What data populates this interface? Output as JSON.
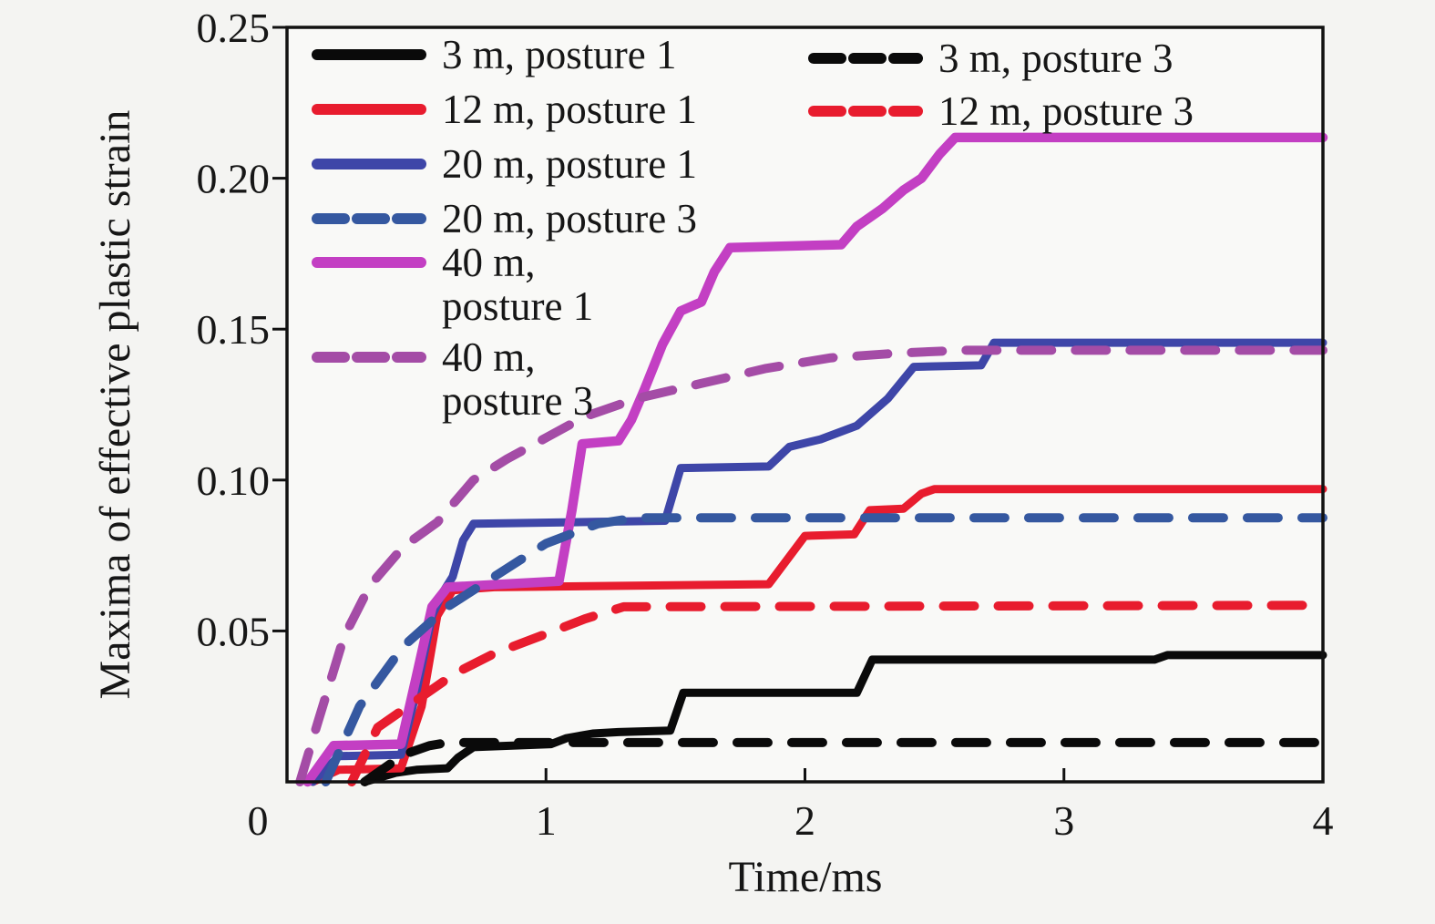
{
  "figure": {
    "background": "#f4f4f2",
    "plot_background": "#f9f9f7",
    "frame_color": "#111111"
  },
  "chart_data": {
    "type": "line",
    "title": "",
    "xlabel": "Time/ms",
    "ylabel": "Maxima of effective plastic strain",
    "xlim": [
      0,
      4
    ],
    "ylim": [
      0,
      0.25
    ],
    "grid": false,
    "legend_position": "upper left (two columns inside plot)",
    "x_ticks": [
      0,
      1,
      2,
      3,
      4
    ],
    "x_tick_labels": [
      "0",
      "1",
      "2",
      "3",
      "4"
    ],
    "y_ticks": [
      0.05,
      0.1,
      0.15,
      0.2,
      0.25
    ],
    "y_tick_labels": [
      "0.05",
      "0.10",
      "0.15",
      "0.20",
      "0.25"
    ],
    "series": [
      {
        "name": "3 m, posture 1",
        "color": "#0a0a0a",
        "dash": false,
        "legend_col": 1,
        "points": [
          [
            0.3,
            0
          ],
          [
            0.42,
            0.003
          ],
          [
            0.5,
            0.004
          ],
          [
            0.62,
            0.0045
          ],
          [
            0.66,
            0.008
          ],
          [
            0.72,
            0.0115
          ],
          [
            1.02,
            0.0125
          ],
          [
            1.08,
            0.0145
          ],
          [
            1.18,
            0.016
          ],
          [
            1.28,
            0.0165
          ],
          [
            1.48,
            0.017
          ],
          [
            1.53,
            0.0295
          ],
          [
            2.2,
            0.0295
          ],
          [
            2.26,
            0.0405
          ],
          [
            3.35,
            0.0405
          ],
          [
            3.4,
            0.042
          ],
          [
            4.0,
            0.042
          ]
        ]
      },
      {
        "name": "12 m, posture 1",
        "color": "#e81c2e",
        "dash": false,
        "legend_col": 1,
        "points": [
          [
            0.1,
            0
          ],
          [
            0.2,
            0.004
          ],
          [
            0.44,
            0.0045
          ],
          [
            0.52,
            0.025
          ],
          [
            0.58,
            0.055
          ],
          [
            0.64,
            0.0635
          ],
          [
            0.8,
            0.0645
          ],
          [
            1.86,
            0.0655
          ],
          [
            2.0,
            0.0815
          ],
          [
            2.19,
            0.082
          ],
          [
            2.25,
            0.09
          ],
          [
            2.38,
            0.0905
          ],
          [
            2.45,
            0.0955
          ],
          [
            2.5,
            0.097
          ],
          [
            4.0,
            0.097
          ]
        ]
      },
      {
        "name": "20 m, posture 1",
        "color": "#3e46a8",
        "dash": false,
        "legend_col": 1,
        "points": [
          [
            0.1,
            0
          ],
          [
            0.2,
            0.0085
          ],
          [
            0.44,
            0.009
          ],
          [
            0.5,
            0.03
          ],
          [
            0.56,
            0.055
          ],
          [
            0.6,
            0.0625
          ],
          [
            0.64,
            0.068
          ],
          [
            0.68,
            0.08
          ],
          [
            0.72,
            0.0855
          ],
          [
            1.46,
            0.0865
          ],
          [
            1.52,
            0.104
          ],
          [
            1.86,
            0.1045
          ],
          [
            1.94,
            0.111
          ],
          [
            2.06,
            0.1135
          ],
          [
            2.2,
            0.118
          ],
          [
            2.32,
            0.127
          ],
          [
            2.42,
            0.1375
          ],
          [
            2.68,
            0.138
          ],
          [
            2.73,
            0.1455
          ],
          [
            4.0,
            0.1455
          ]
        ]
      },
      {
        "name": "20 m, posture 3",
        "color": "#3558a0",
        "dash": true,
        "legend_col": 1,
        "points": [
          [
            0.15,
            0
          ],
          [
            0.28,
            0.025
          ],
          [
            0.45,
            0.045
          ],
          [
            0.62,
            0.058
          ],
          [
            0.8,
            0.068
          ],
          [
            1.0,
            0.079
          ],
          [
            1.2,
            0.0855
          ],
          [
            1.35,
            0.0875
          ],
          [
            4.0,
            0.0875
          ]
        ]
      },
      {
        "name": "40 m, posture 1",
        "legend_label": "40 m,\nposture 1",
        "color": "#c33fc3",
        "dash": false,
        "legend_col": 1,
        "points": [
          [
            0.08,
            0
          ],
          [
            0.18,
            0.012
          ],
          [
            0.44,
            0.0125
          ],
          [
            0.5,
            0.035
          ],
          [
            0.56,
            0.058
          ],
          [
            0.62,
            0.0645
          ],
          [
            1.05,
            0.0665
          ],
          [
            1.1,
            0.09
          ],
          [
            1.14,
            0.112
          ],
          [
            1.28,
            0.113
          ],
          [
            1.33,
            0.12
          ],
          [
            1.38,
            0.13
          ],
          [
            1.45,
            0.145
          ],
          [
            1.52,
            0.156
          ],
          [
            1.6,
            0.159
          ],
          [
            1.65,
            0.169
          ],
          [
            1.71,
            0.177
          ],
          [
            2.14,
            0.178
          ],
          [
            2.2,
            0.184
          ],
          [
            2.3,
            0.19
          ],
          [
            2.38,
            0.196
          ],
          [
            2.45,
            0.2
          ],
          [
            2.52,
            0.208
          ],
          [
            2.58,
            0.2135
          ],
          [
            4.0,
            0.2135
          ]
        ]
      },
      {
        "name": "40 m, posture 3",
        "legend_label": "40 m,\nposture 3",
        "color": "#a44ca6",
        "dash": true,
        "legend_col": 1,
        "points": [
          [
            0.05,
            0
          ],
          [
            0.12,
            0.02
          ],
          [
            0.22,
            0.048
          ],
          [
            0.32,
            0.065
          ],
          [
            0.45,
            0.078
          ],
          [
            0.58,
            0.086
          ],
          [
            0.72,
            0.1
          ],
          [
            0.85,
            0.107
          ],
          [
            1.0,
            0.114
          ],
          [
            1.15,
            0.121
          ],
          [
            1.35,
            0.127
          ],
          [
            1.6,
            0.132
          ],
          [
            1.85,
            0.137
          ],
          [
            2.1,
            0.1405
          ],
          [
            2.35,
            0.142
          ],
          [
            2.6,
            0.143
          ],
          [
            4.0,
            0.143
          ]
        ]
      },
      {
        "name": "3 m, posture 3",
        "color": "#0a0a0a",
        "dash": true,
        "legend_col": 2,
        "points": [
          [
            0.3,
            0
          ],
          [
            0.45,
            0.009
          ],
          [
            0.55,
            0.012
          ],
          [
            0.62,
            0.013
          ],
          [
            4.0,
            0.013
          ]
        ]
      },
      {
        "name": "12 m, posture 3",
        "color": "#e81c2e",
        "dash": true,
        "legend_col": 2,
        "points": [
          [
            0.25,
            0
          ],
          [
            0.35,
            0.018
          ],
          [
            0.5,
            0.027
          ],
          [
            0.65,
            0.036
          ],
          [
            0.8,
            0.0425
          ],
          [
            1.0,
            0.049
          ],
          [
            1.15,
            0.054
          ],
          [
            1.3,
            0.058
          ],
          [
            4.0,
            0.0585
          ]
        ]
      }
    ]
  }
}
